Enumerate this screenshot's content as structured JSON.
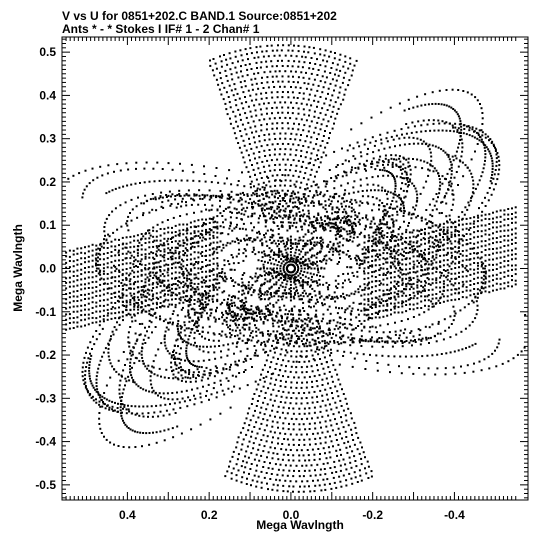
{
  "header": {
    "line1": "V vs U for 0851+202.C BAND.1   Source:0851+202",
    "line2": "Ants * - *     Stokes I   IF# 1 - 2   Chan# 1"
  },
  "chart_data": {
    "type": "scatter",
    "xlabel": "Mega Wavlngth",
    "ylabel": "Mega Wavlngth",
    "xlim": [
      0.56,
      -0.58
    ],
    "ylim": [
      -0.535,
      0.535
    ],
    "x_reversed": true,
    "x_ticks": [
      {
        "value": 0.4,
        "label": "0.4"
      },
      {
        "value": 0.2,
        "label": "0.2"
      },
      {
        "value": 0.0,
        "label": "0.0"
      },
      {
        "value": -0.2,
        "label": "-0.2"
      },
      {
        "value": -0.4,
        "label": "-0.4"
      }
    ],
    "y_ticks": [
      {
        "value": 0.5,
        "label": "0.5"
      },
      {
        "value": 0.4,
        "label": "0.4"
      },
      {
        "value": 0.3,
        "label": "0.3"
      },
      {
        "value": 0.2,
        "label": "0.2"
      },
      {
        "value": 0.1,
        "label": "0.1"
      },
      {
        "value": 0.0,
        "label": "0.0"
      },
      {
        "value": -0.1,
        "label": "-0.1"
      },
      {
        "value": -0.2,
        "label": "-0.2"
      },
      {
        "value": -0.3,
        "label": "-0.3"
      },
      {
        "value": -0.4,
        "label": "-0.4"
      },
      {
        "value": -0.5,
        "label": "-0.5"
      }
    ],
    "grid": false,
    "marker_color": "#000000",
    "coverage_pattern": "uv-tracks"
  }
}
